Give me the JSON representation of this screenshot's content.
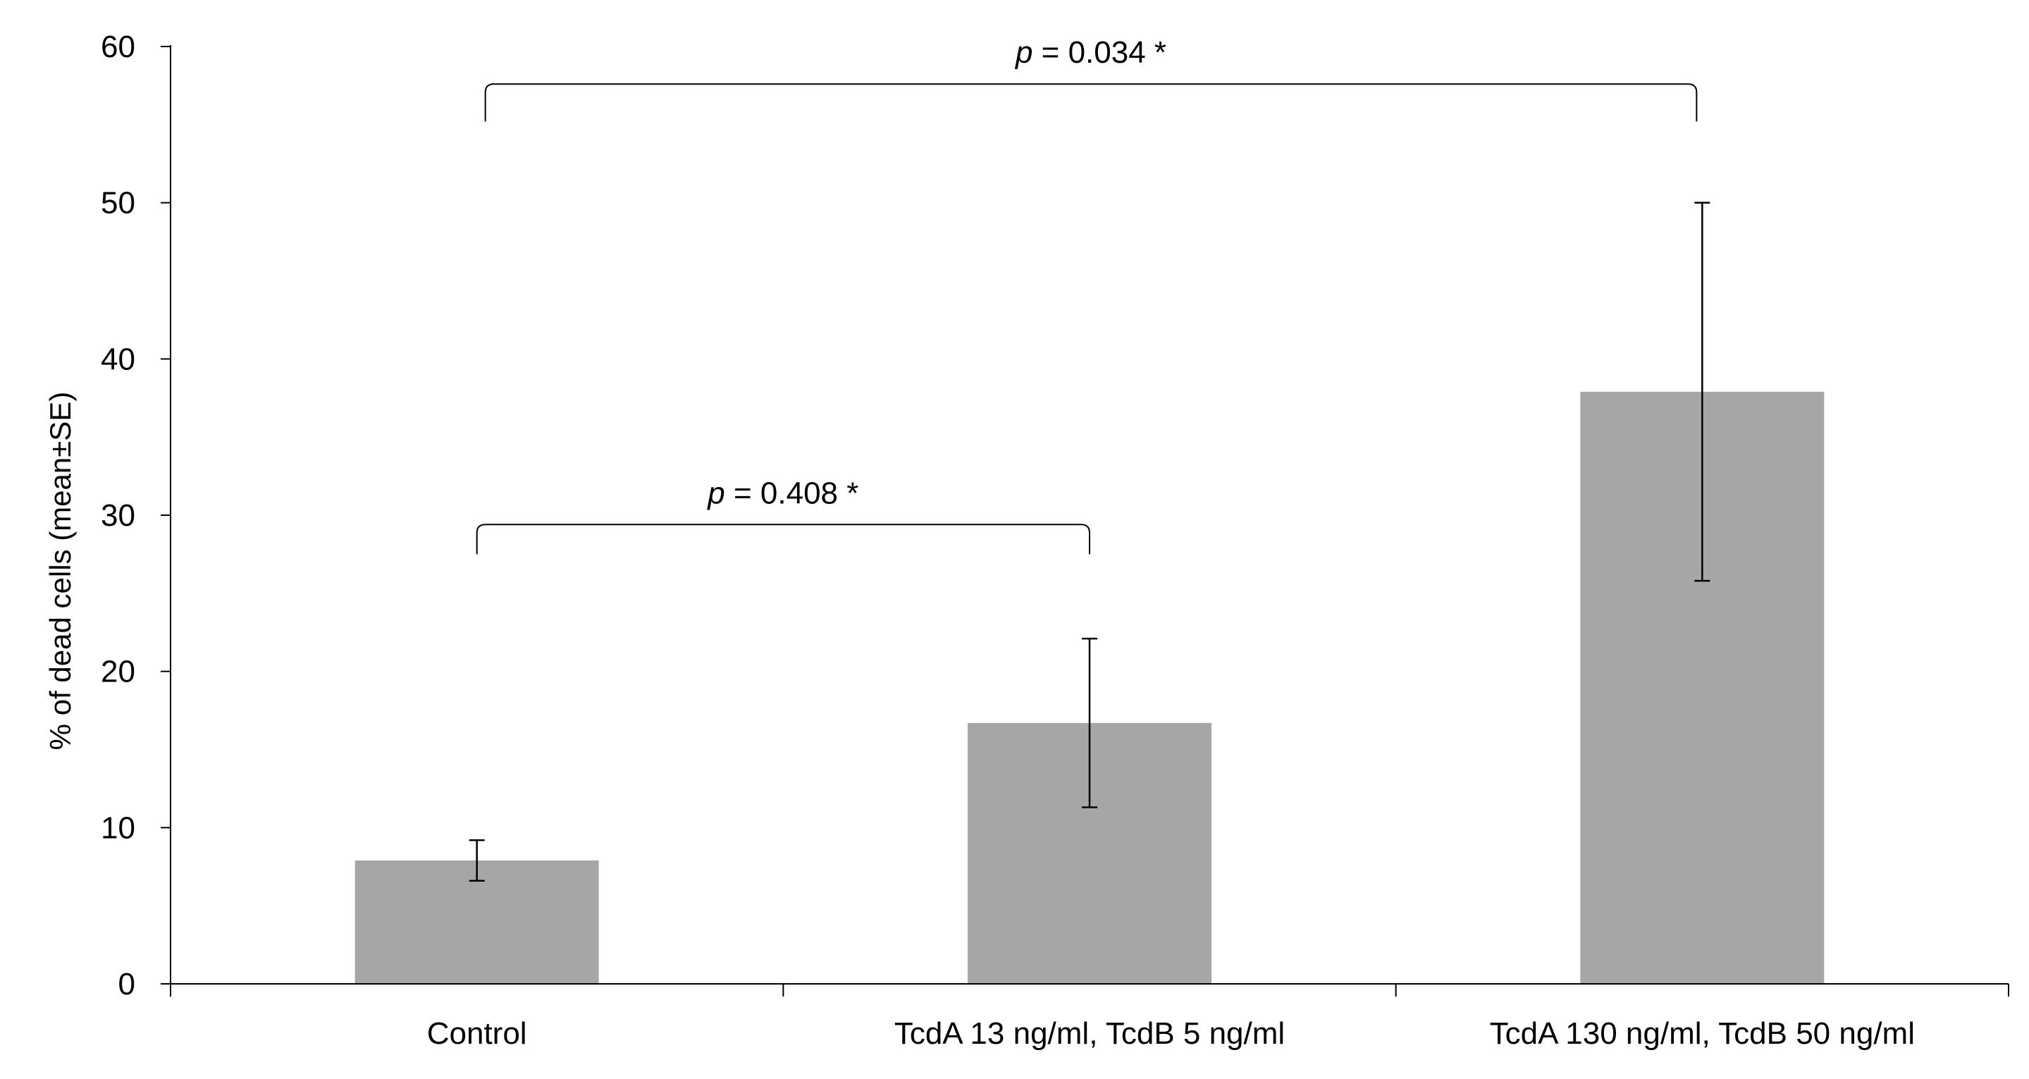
{
  "chart_data": {
    "type": "bar",
    "title": "",
    "xlabel": "",
    "ylabel": "% of dead cells (mean±SE)",
    "ylim": [
      0,
      60
    ],
    "yticks": [
      0,
      10,
      20,
      30,
      40,
      50,
      60
    ],
    "categories": [
      "Control",
      "TcdA 13 ng/ml, TcdB 5 ng/ml",
      "TcdA 130 ng/ml, TcdB 50 ng/ml"
    ],
    "values": [
      7.9,
      16.7,
      37.9
    ],
    "error_low": [
      6.6,
      11.3,
      25.8
    ],
    "error_high": [
      9.2,
      22.1,
      50.0
    ],
    "bar_color": "#a6a6a6",
    "grid": false,
    "legend": "none",
    "annotations": [
      {
        "from": 0,
        "to": 1,
        "p_symbol": "p",
        "text": " = 0.408 *",
        "bracket_y": 29.4,
        "bracket_tip_y": 27.5
      },
      {
        "from": 0,
        "to": 2,
        "p_symbol": "p",
        "text": " = 0.034 *",
        "bracket_y": 57.6,
        "bracket_tip_y": 55.2
      }
    ]
  }
}
